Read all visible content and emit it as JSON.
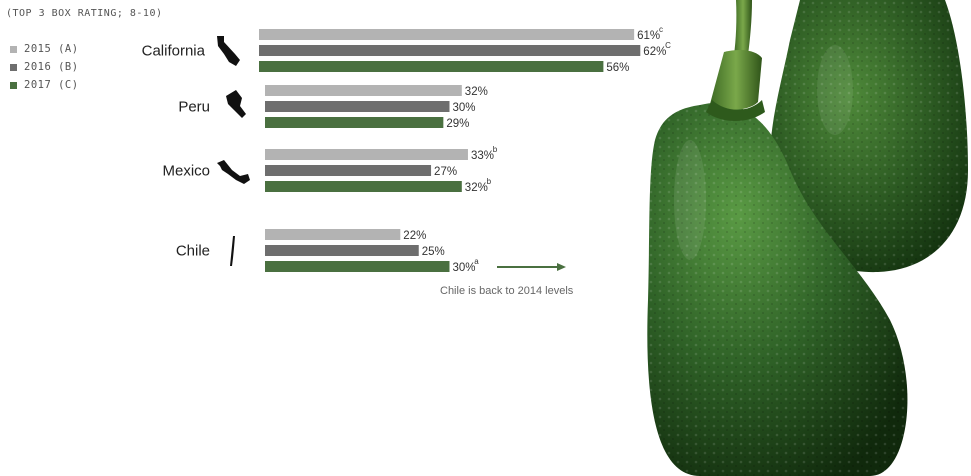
{
  "subtitle": "(TOP 3 BOX RATING; 8-10)",
  "legend": [
    {
      "label": "2015 (A)",
      "color": "#b3b3b3"
    },
    {
      "label": "2016 (B)",
      "color": "#6e6e6e"
    },
    {
      "label": "2017 (C)",
      "color": "#4a7040"
    }
  ],
  "chart_data": {
    "type": "bar",
    "orientation": "horizontal",
    "title": "",
    "subtitle": "(TOP 3 BOX RATING; 8-10)",
    "unit": "%",
    "categories": [
      "California",
      "Peru",
      "Mexico",
      "Chile"
    ],
    "series": [
      {
        "name": "2015 (A)",
        "color": "#b3b3b3",
        "values": [
          61,
          32,
          33,
          22
        ],
        "labels": [
          "61%",
          "32%",
          "33%",
          "22%"
        ],
        "superscripts": [
          "c",
          "",
          "b",
          ""
        ]
      },
      {
        "name": "2016 (B)",
        "color": "#6e6e6e",
        "values": [
          62,
          30,
          27,
          25
        ],
        "labels": [
          "62%",
          "30%",
          "27%",
          "25%"
        ],
        "superscripts": [
          "C",
          "",
          "",
          ""
        ]
      },
      {
        "name": "2017 (C)",
        "color": "#4a7040",
        "values": [
          56,
          29,
          32,
          30
        ],
        "labels": [
          "56%",
          "29%",
          "32%",
          "30%"
        ],
        "superscripts": [
          "",
          "",
          "b",
          "a"
        ]
      }
    ],
    "annotation": {
      "text": "Chile is back to 2014 levels",
      "category": "Chile",
      "series": "2017 (C)"
    },
    "legend_position": "top-left",
    "grid": false
  }
}
